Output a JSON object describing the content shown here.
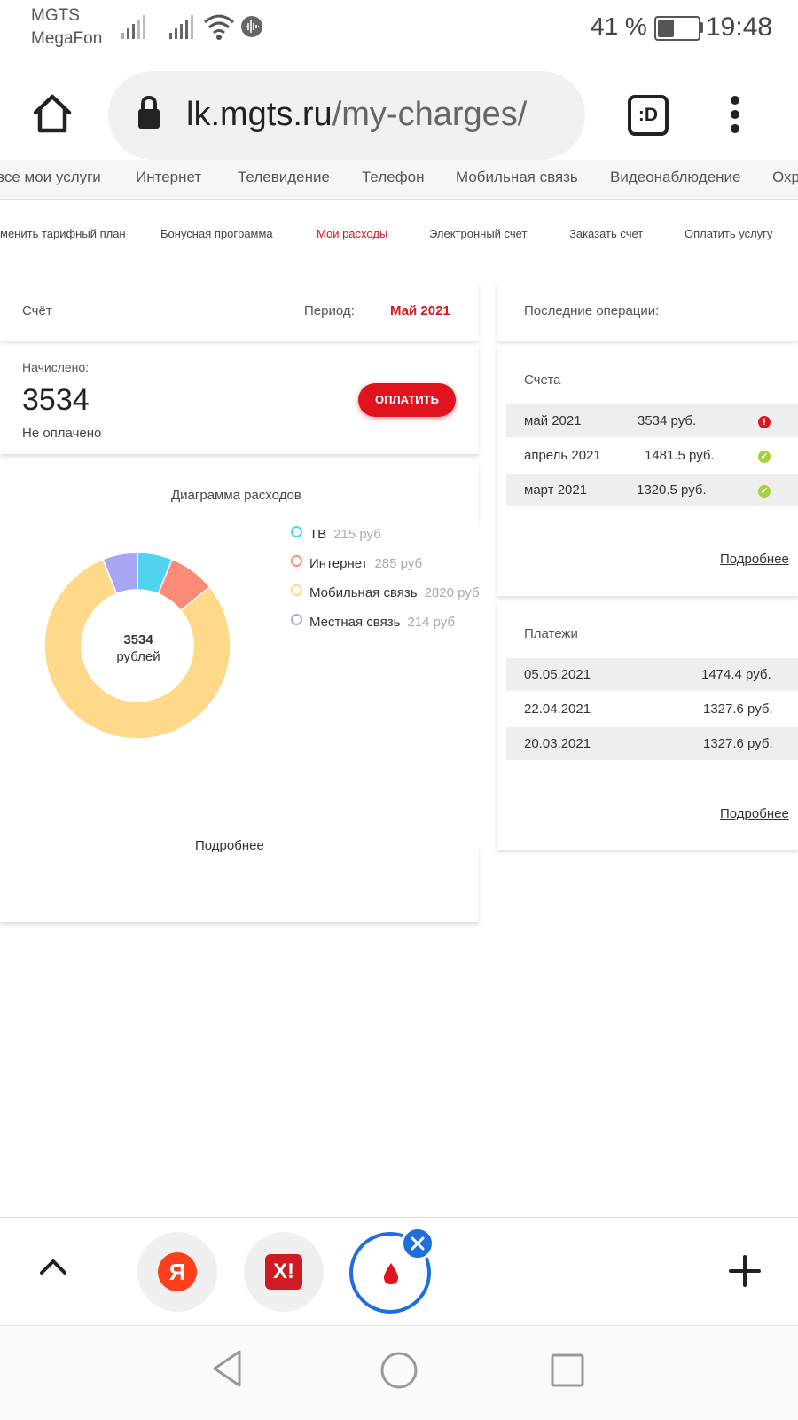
{
  "status_bar": {
    "carrier1": "MGTS",
    "carrier2": "MegaFon",
    "battery_text": "41 %",
    "battery_level": 0.41,
    "time": "19:48"
  },
  "browser": {
    "url_host": "lk.mgts.ru",
    "url_path": "/my-charges/",
    "tabs_icon_label": ":D"
  },
  "top_nav": [
    "все мои услуги",
    "Интернет",
    "Телевидение",
    "Телефон",
    "Мобильная связь",
    "Видеонаблюдение",
    "Охр"
  ],
  "sub_nav": {
    "items": [
      "менить тарифный план",
      "Бонусная программа",
      "Мои расходы",
      "Электронный счет",
      "Заказать счет",
      "Оплатить услугу"
    ],
    "active": "Мои расходы"
  },
  "account": {
    "label": "Счёт",
    "period_label": "Период:",
    "period_value": "Май 2021"
  },
  "charged": {
    "label": "Начислено:",
    "amount": "3534",
    "status": "Не оплачено",
    "pay_button": "ОПЛАТИТЬ"
  },
  "chart_title": "Диаграмма расходов",
  "chart_data": {
    "type": "pie",
    "donut": true,
    "center_value": "3534",
    "center_unit": "рублей",
    "series": [
      {
        "name": "ТВ",
        "value": 215,
        "label": "215 руб",
        "color": "#4fd3ee"
      },
      {
        "name": "Интернет",
        "value": 285,
        "label": "285 руб",
        "color": "#fb8a77"
      },
      {
        "name": "Мобильная связь",
        "value": 2820,
        "label": "2820 руб",
        "color": "#fed98a"
      },
      {
        "name": "Местная связь",
        "value": 214,
        "label": "214 руб",
        "color": "#a8a6f4"
      }
    ]
  },
  "left_more": "Подробнее",
  "last_ops": {
    "title": "Последние операции:",
    "bills_title": "Счета",
    "bills": [
      {
        "month": "май 2021",
        "amount": "3534 руб.",
        "status": "unpaid"
      },
      {
        "month": "апрель 2021",
        "amount": "1481.5 руб.",
        "status": "paid"
      },
      {
        "month": "март 2021",
        "amount": "1320.5 руб.",
        "status": "paid"
      }
    ],
    "bills_more": "Подробнее",
    "payments_title": "Платежи",
    "payments": [
      {
        "date": "05.05.2021",
        "amount": "1474.4 руб."
      },
      {
        "date": "22.04.2021",
        "amount": "1327.6 руб."
      },
      {
        "date": "20.03.2021",
        "amount": "1327.6 руб."
      }
    ],
    "payments_more": "Подробнее"
  },
  "colors": {
    "accent_red": "#e0141e",
    "paid_green": "#a6d233",
    "unpaid_red": "#e0141e",
    "active_tab_blue": "#1e6fd9"
  },
  "bottom_tabs": {
    "tab1_letter": "Я",
    "tab2_letter": "X!"
  }
}
